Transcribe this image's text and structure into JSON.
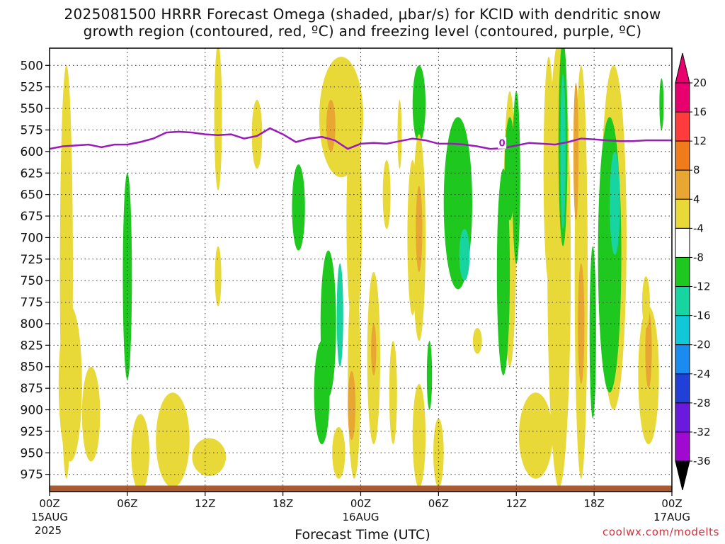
{
  "header": {
    "title_line1": "2025081500 HRRR Forecast Omega (shaded, μbar/s) for KCID with dendritic snow",
    "title_line2": "growth region (contoured, red, ºC) and freezing level (contoured, purple, ºC)"
  },
  "footer": {
    "credit": "coolwx.com/modelts"
  },
  "chart_data": {
    "type": "heatmap",
    "xlabel": "Forecast Time (UTC)",
    "ylabel": "",
    "x_ticks": [
      {
        "hour": 0,
        "label": "00Z",
        "sub1": "15AUG",
        "sub2": "2025"
      },
      {
        "hour": 6,
        "label": "06Z",
        "sub1": "",
        "sub2": ""
      },
      {
        "hour": 12,
        "label": "12Z",
        "sub1": "",
        "sub2": ""
      },
      {
        "hour": 18,
        "label": "18Z",
        "sub1": "",
        "sub2": ""
      },
      {
        "hour": 24,
        "label": "00Z",
        "sub1": "16AUG",
        "sub2": ""
      },
      {
        "hour": 30,
        "label": "06Z",
        "sub1": "",
        "sub2": ""
      },
      {
        "hour": 36,
        "label": "12Z",
        "sub1": "",
        "sub2": ""
      },
      {
        "hour": 42,
        "label": "18Z",
        "sub1": "",
        "sub2": ""
      },
      {
        "hour": 48,
        "label": "00Z",
        "sub1": "17AUG",
        "sub2": ""
      }
    ],
    "xlim": [
      0,
      48
    ],
    "y_ticks": [
      "500",
      "525",
      "550",
      "575",
      "600",
      "625",
      "650",
      "675",
      "700",
      "725",
      "750",
      "775",
      "800",
      "825",
      "850",
      "875",
      "900",
      "925",
      "950",
      "975"
    ],
    "y_tick_values": [
      500,
      525,
      550,
      575,
      600,
      625,
      650,
      675,
      700,
      725,
      750,
      775,
      800,
      825,
      850,
      875,
      900,
      925,
      950,
      975
    ],
    "ylim": [
      480,
      995
    ],
    "y_inverted": true,
    "grid": true,
    "colorbar": {
      "ticks": [
        "20",
        "16",
        "12",
        "8",
        "4",
        "-4",
        "-8",
        "-12",
        "-16",
        "-20",
        "-24",
        "-28",
        "-32",
        "-36"
      ],
      "bins": [
        {
          "lo": 20,
          "hi": 24,
          "color": "#e8006e"
        },
        {
          "lo": 16,
          "hi": 20,
          "color": "#ff3b3b"
        },
        {
          "lo": 12,
          "hi": 16,
          "color": "#f07b1a"
        },
        {
          "lo": 8,
          "hi": 12,
          "color": "#e8a633"
        },
        {
          "lo": 4,
          "hi": 8,
          "color": "#e8d838"
        },
        {
          "lo": -4,
          "hi": 4,
          "color": "#ffffff"
        },
        {
          "lo": -8,
          "hi": -4,
          "color": "#1ec81e"
        },
        {
          "lo": -12,
          "hi": -8,
          "color": "#18d4a0"
        },
        {
          "lo": -16,
          "hi": -12,
          "color": "#10c8d8"
        },
        {
          "lo": -20,
          "hi": -16,
          "color": "#1a8cf0"
        },
        {
          "lo": -24,
          "hi": -20,
          "color": "#2040d8"
        },
        {
          "lo": -28,
          "hi": -24,
          "color": "#6a1adc"
        },
        {
          "lo": -32,
          "hi": -28,
          "color": "#a00ad0"
        },
        {
          "lo": -36,
          "hi": -32,
          "color": "#a8a8a8"
        }
      ],
      "top_arrow_color": "#e8006e",
      "bottom_arrow_color": "#000000"
    },
    "freezing_level": {
      "color": "#9a1aba",
      "label": "0",
      "label_hour": 34.9,
      "label_p": 590,
      "points": [
        [
          0,
          597
        ],
        [
          1,
          594
        ],
        [
          2,
          593
        ],
        [
          3,
          592
        ],
        [
          4,
          595
        ],
        [
          5,
          592
        ],
        [
          6,
          592
        ],
        [
          7,
          589
        ],
        [
          8,
          585
        ],
        [
          9,
          578
        ],
        [
          10,
          577
        ],
        [
          11,
          578
        ],
        [
          12,
          580
        ],
        [
          13,
          581
        ],
        [
          14,
          580
        ],
        [
          15,
          585
        ],
        [
          16,
          582
        ],
        [
          17,
          573
        ],
        [
          18,
          580
        ],
        [
          19,
          589
        ],
        [
          20,
          585
        ],
        [
          21,
          583
        ],
        [
          22,
          587
        ],
        [
          23,
          597
        ],
        [
          24,
          591
        ],
        [
          25,
          590
        ],
        [
          26,
          591
        ],
        [
          27,
          588
        ],
        [
          28,
          585
        ],
        [
          29,
          587
        ],
        [
          30,
          591
        ],
        [
          31,
          591
        ],
        [
          32,
          592
        ],
        [
          33,
          594
        ],
        [
          34,
          597
        ],
        [
          35,
          596
        ],
        [
          36,
          593
        ],
        [
          37,
          590
        ],
        [
          38,
          591
        ],
        [
          39,
          592
        ],
        [
          40,
          589
        ],
        [
          41,
          585
        ],
        [
          42,
          586
        ],
        [
          43,
          587
        ],
        [
          44,
          588
        ],
        [
          45,
          588
        ],
        [
          46,
          587
        ],
        [
          47,
          587
        ],
        [
          48,
          587
        ]
      ]
    },
    "terrain": {
      "color": "#a85a30",
      "p_top": 988
    },
    "omega_areas": [
      {
        "hour": 1.3,
        "p": 740,
        "rx": 0.5,
        "rp": 240,
        "v": 5
      },
      {
        "hour": 1.6,
        "p": 870,
        "rx": 0.9,
        "rp": 90,
        "v": 5
      },
      {
        "hour": 3.2,
        "p": 905,
        "rx": 0.7,
        "rp": 55,
        "v": 5
      },
      {
        "hour": 6.0,
        "p": 745,
        "rx": 0.35,
        "rp": 120,
        "v": -6
      },
      {
        "hour": 7.0,
        "p": 950,
        "rx": 0.7,
        "rp": 45,
        "v": 5
      },
      {
        "hour": 9.5,
        "p": 935,
        "rx": 1.3,
        "rp": 55,
        "v": 5
      },
      {
        "hour": 12.3,
        "p": 955,
        "rx": 1.3,
        "rp": 22,
        "v": 5
      },
      {
        "hour": 13.0,
        "p": 560,
        "rx": 0.3,
        "rp": 85,
        "v": 5
      },
      {
        "hour": 13.0,
        "p": 745,
        "rx": 0.25,
        "rp": 35,
        "v": 5
      },
      {
        "hour": 16.0,
        "p": 580,
        "rx": 0.4,
        "rp": 40,
        "v": 5
      },
      {
        "hour": 19.2,
        "p": 665,
        "rx": 0.5,
        "rp": 50,
        "v": -6
      },
      {
        "hour": 22.5,
        "p": 560,
        "rx": 1.7,
        "rp": 70,
        "v": 5
      },
      {
        "hour": 21.5,
        "p": 800,
        "rx": 0.6,
        "rp": 85,
        "v": -6
      },
      {
        "hour": 22.4,
        "p": 790,
        "rx": 0.25,
        "rp": 60,
        "v": -10
      },
      {
        "hour": 21.0,
        "p": 880,
        "rx": 0.6,
        "rp": 60,
        "v": -6
      },
      {
        "hour": 23.5,
        "p": 680,
        "rx": 0.6,
        "rp": 130,
        "v": 5
      },
      {
        "hour": 23.5,
        "p": 860,
        "rx": 0.5,
        "rp": 120,
        "v": 5
      },
      {
        "hour": 21.7,
        "p": 570,
        "rx": 0.35,
        "rp": 30,
        "v": 9
      },
      {
        "hour": 23.3,
        "p": 895,
        "rx": 0.3,
        "rp": 40,
        "v": 9
      },
      {
        "hour": 22.3,
        "p": 950,
        "rx": 0.5,
        "rp": 30,
        "v": 5
      },
      {
        "hour": 25.0,
        "p": 840,
        "rx": 0.5,
        "rp": 100,
        "v": 5
      },
      {
        "hour": 25.0,
        "p": 830,
        "rx": 0.2,
        "rp": 30,
        "v": 9
      },
      {
        "hour": 26.0,
        "p": 650,
        "rx": 0.3,
        "rp": 40,
        "v": 5
      },
      {
        "hour": 27.0,
        "p": 580,
        "rx": 0.15,
        "rp": 40,
        "v": 5
      },
      {
        "hour": 26.5,
        "p": 880,
        "rx": 0.3,
        "rp": 60,
        "v": 5
      },
      {
        "hour": 28.5,
        "p": 545,
        "rx": 0.5,
        "rp": 45,
        "v": -6
      },
      {
        "hour": 28.0,
        "p": 700,
        "rx": 0.4,
        "rp": 90,
        "v": 5
      },
      {
        "hour": 28.5,
        "p": 700,
        "rx": 0.5,
        "rp": 120,
        "v": 5
      },
      {
        "hour": 28.5,
        "p": 690,
        "rx": 0.25,
        "rp": 50,
        "v": 9
      },
      {
        "hour": 29.3,
        "p": 860,
        "rx": 0.2,
        "rp": 40,
        "v": -6
      },
      {
        "hour": 28.5,
        "p": 930,
        "rx": 0.5,
        "rp": 60,
        "v": 5
      },
      {
        "hour": 30.0,
        "p": 950,
        "rx": 0.4,
        "rp": 40,
        "v": 5
      },
      {
        "hour": 31.5,
        "p": 660,
        "rx": 1.1,
        "rp": 100,
        "v": -6
      },
      {
        "hour": 32.0,
        "p": 720,
        "rx": 0.4,
        "rp": 30,
        "v": -10
      },
      {
        "hour": 33.0,
        "p": 820,
        "rx": 0.35,
        "rp": 15,
        "v": 5
      },
      {
        "hour": 35.5,
        "p": 690,
        "rx": 0.5,
        "rp": 160,
        "v": 5
      },
      {
        "hour": 35.5,
        "p": 620,
        "rx": 0.4,
        "rp": 60,
        "v": -6
      },
      {
        "hour": 35.0,
        "p": 740,
        "rx": 0.5,
        "rp": 120,
        "v": -6
      },
      {
        "hour": 36.0,
        "p": 630,
        "rx": 0.3,
        "rp": 100,
        "v": -6
      },
      {
        "hour": 37.5,
        "p": 930,
        "rx": 1.3,
        "rp": 50,
        "v": 5
      },
      {
        "hour": 38.5,
        "p": 620,
        "rx": 0.4,
        "rp": 130,
        "v": 5
      },
      {
        "hour": 39.3,
        "p": 730,
        "rx": 0.9,
        "rp": 260,
        "v": 5
      },
      {
        "hour": 39.6,
        "p": 590,
        "rx": 0.35,
        "rp": 120,
        "v": -6
      },
      {
        "hour": 39.6,
        "p": 600,
        "rx": 0.2,
        "rp": 90,
        "v": -10
      },
      {
        "hour": 41.0,
        "p": 740,
        "rx": 0.5,
        "rp": 240,
        "v": 5
      },
      {
        "hour": 41.0,
        "p": 800,
        "rx": 0.25,
        "rp": 70,
        "v": 9
      },
      {
        "hour": 40.6,
        "p": 600,
        "rx": 0.2,
        "rp": 80,
        "v": 9
      },
      {
        "hour": 41.9,
        "p": 810,
        "rx": 0.25,
        "rp": 100,
        "v": -6
      },
      {
        "hour": 43.5,
        "p": 700,
        "rx": 1.0,
        "rp": 200,
        "v": 5
      },
      {
        "hour": 43.2,
        "p": 720,
        "rx": 0.9,
        "rp": 160,
        "v": -6
      },
      {
        "hour": 43.6,
        "p": 660,
        "rx": 0.4,
        "rp": 60,
        "v": -10
      },
      {
        "hour": 46.2,
        "p": 860,
        "rx": 0.8,
        "rp": 80,
        "v": 5
      },
      {
        "hour": 46.2,
        "p": 830,
        "rx": 0.25,
        "rp": 45,
        "v": 9
      },
      {
        "hour": 46.0,
        "p": 775,
        "rx": 0.3,
        "rp": 30,
        "v": 5
      },
      {
        "hour": 47.2,
        "p": 545,
        "rx": 0.15,
        "rp": 30,
        "v": -6
      }
    ]
  }
}
